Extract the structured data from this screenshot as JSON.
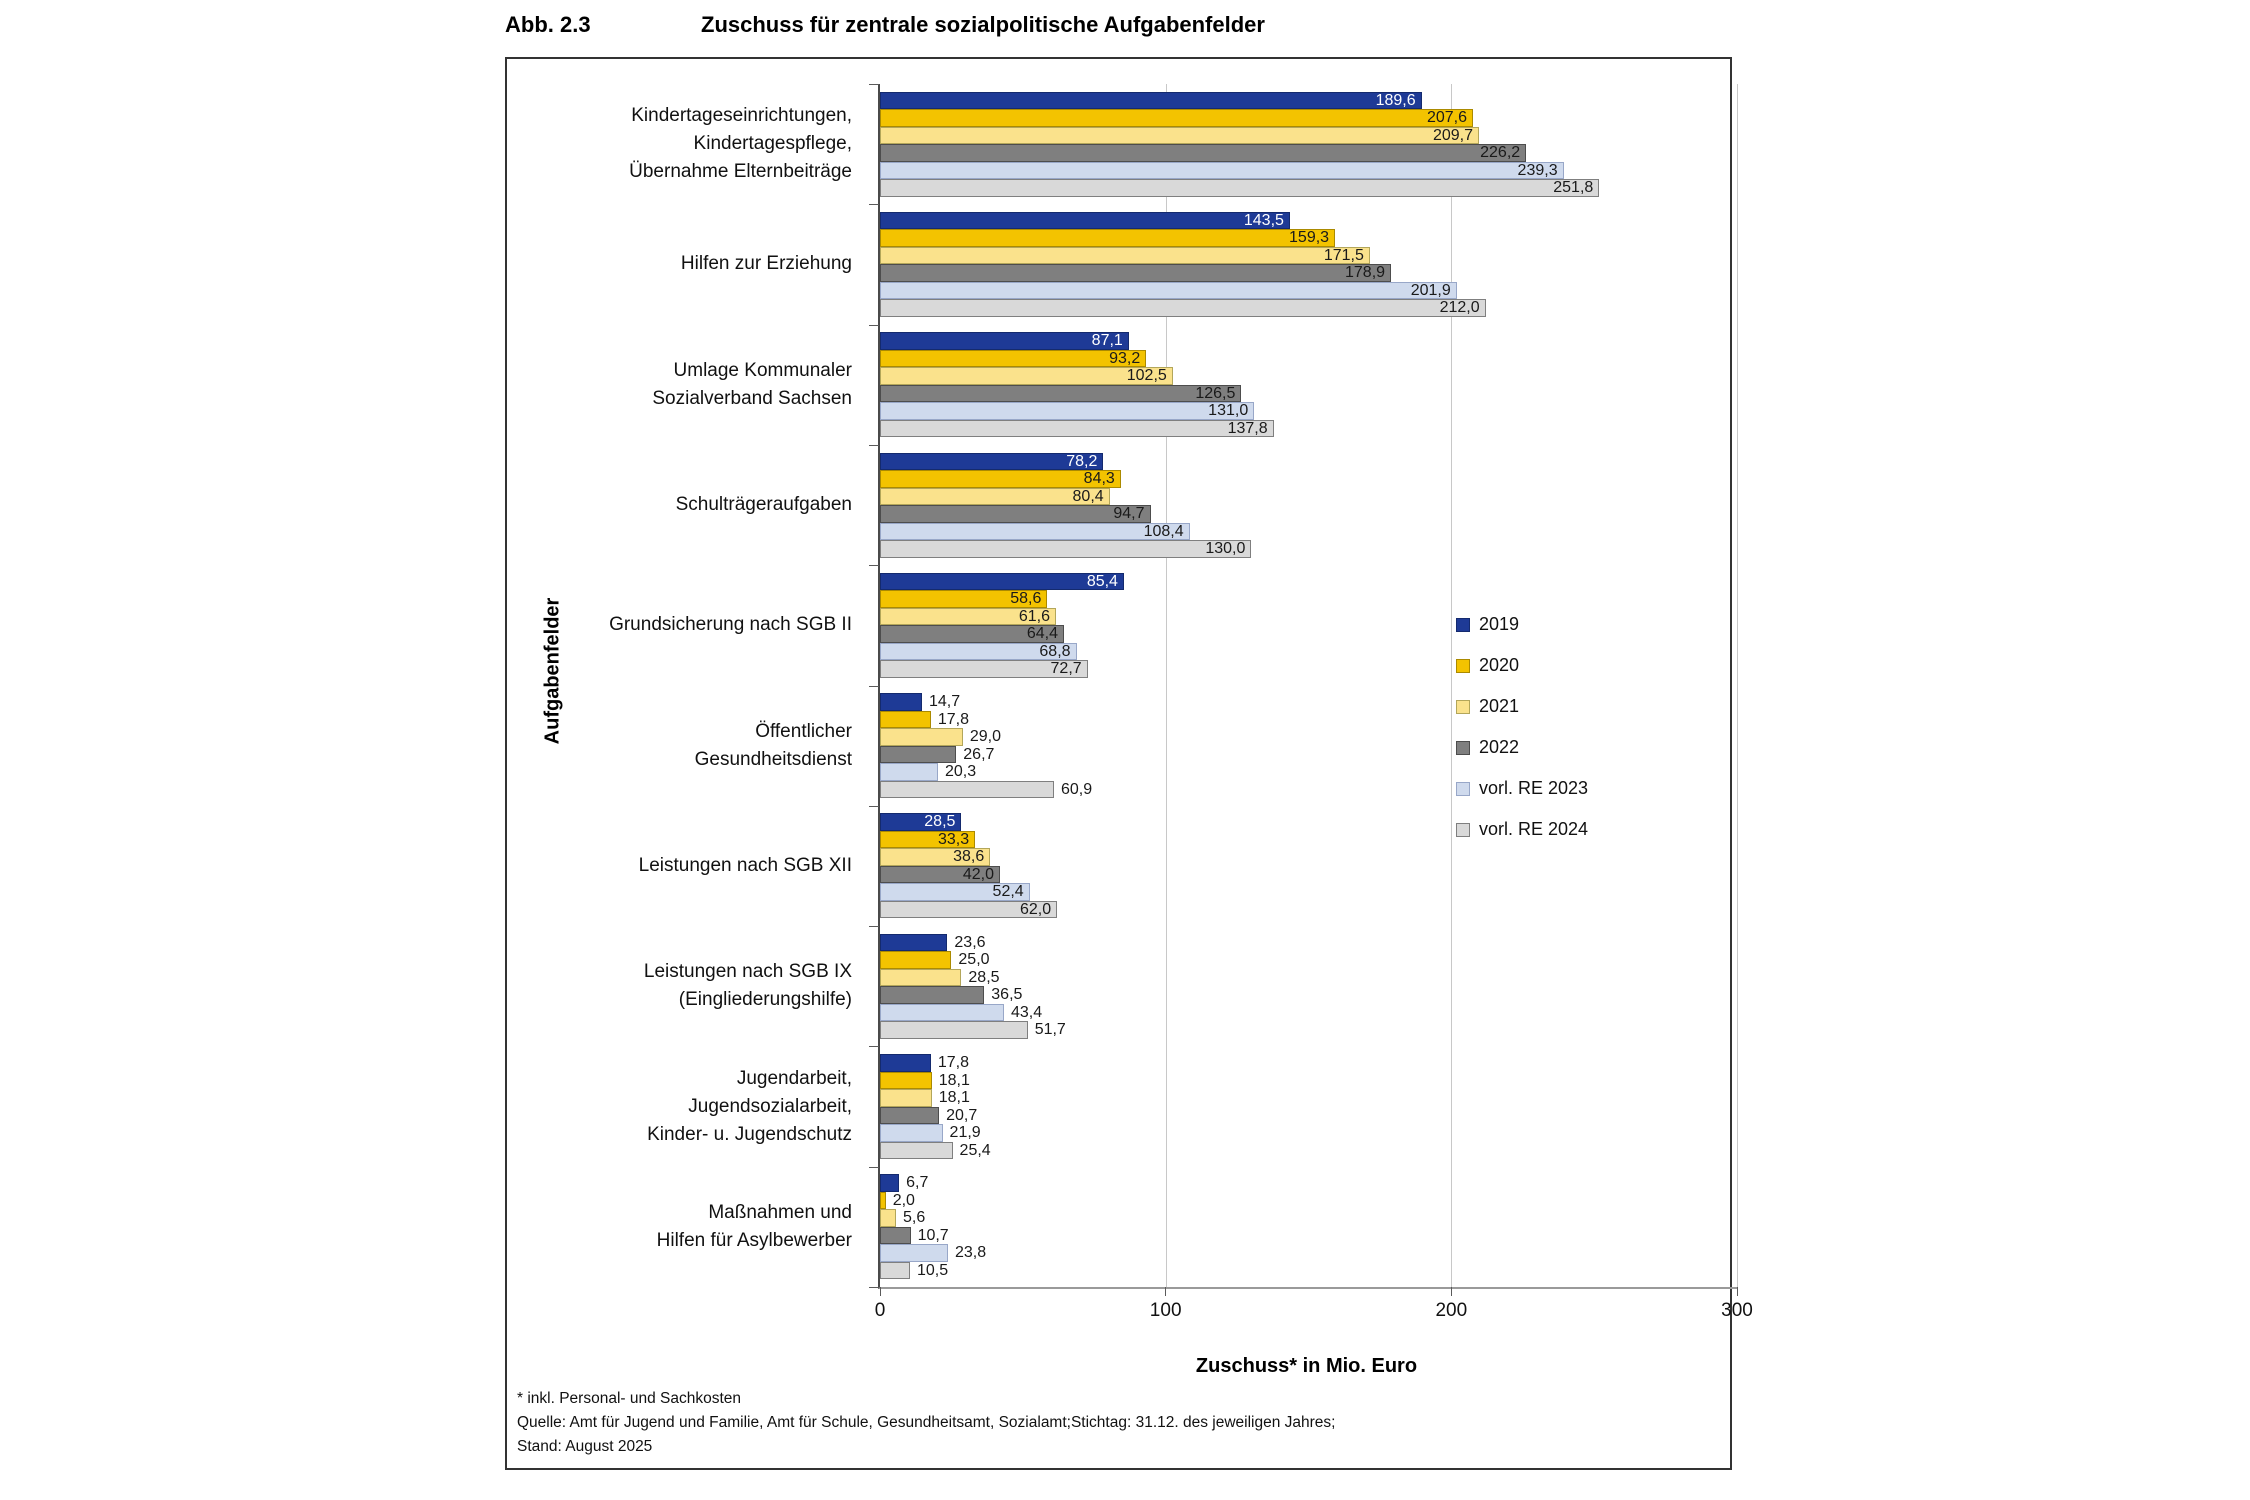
{
  "figure": {
    "label": "Abb. 2.3",
    "title": "Zuschuss für zentrale sozialpolitische Aufgabenfelder"
  },
  "chart_data": {
    "type": "bar",
    "orientation": "horizontal",
    "title": "Zuschuss für zentrale sozialpolitische Aufgabenfelder",
    "xlabel": "Zuschuss* in Mio. Euro",
    "ylabel": "Aufgabenfelder",
    "xlim": [
      0,
      300
    ],
    "xticks": [
      0,
      100,
      200,
      300
    ],
    "grid": "vertical gridlines at 100, 200, 300",
    "legend_position": "center-right",
    "decimal_format": "comma",
    "categories": [
      [
        "Kindertageseinrichtungen,",
        "Kindertagespflege,",
        "Übernahme Elternbeiträge"
      ],
      [
        "Hilfen zur Erziehung"
      ],
      [
        "Umlage Kommunaler",
        "Sozialverband Sachsen"
      ],
      [
        "Schulträgeraufgaben"
      ],
      [
        "Grundsicherung  nach SGB II"
      ],
      [
        "Öffentlicher",
        "Gesundheitsdienst"
      ],
      [
        "Leistungen nach SGB XII"
      ],
      [
        "Leistungen nach SGB IX",
        "(Eingliederungshilfe)"
      ],
      [
        "Jugendarbeit,",
        "Jugendsozialarbeit,",
        "Kinder- u. Jugendschutz"
      ],
      [
        "Maßnahmen und",
        "Hilfen für Asylbewerber"
      ]
    ],
    "series": [
      {
        "name": "2019",
        "color": "#1e3a96",
        "border": "#142a6e",
        "values": [
          189.6,
          143.5,
          87.1,
          78.2,
          85.4,
          14.7,
          28.5,
          23.6,
          17.8,
          6.7
        ]
      },
      {
        "name": "2020",
        "color": "#f3c300",
        "border": "#ab8a00",
        "values": [
          207.6,
          159.3,
          93.2,
          84.3,
          58.6,
          17.8,
          33.3,
          25.0,
          18.1,
          2.0
        ]
      },
      {
        "name": "2021",
        "color": "#fae28c",
        "border": "#b3a65a",
        "values": [
          209.7,
          171.5,
          102.5,
          80.4,
          61.6,
          29.0,
          38.6,
          28.5,
          18.1,
          5.6
        ]
      },
      {
        "name": "2022",
        "color": "#7f7f7f",
        "border": "#4d4d4d",
        "values": [
          226.2,
          178.9,
          126.5,
          94.7,
          64.4,
          26.7,
          42.0,
          36.5,
          20.7,
          10.7
        ]
      },
      {
        "name": "vorl. RE 2023",
        "color": "#cfdaed",
        "border": "#98a7c8",
        "values": [
          239.3,
          201.9,
          131.0,
          108.4,
          68.8,
          20.3,
          52.4,
          43.4,
          21.9,
          23.8
        ]
      },
      {
        "name": "vorl. RE 2024",
        "color": "#d9d9d9",
        "border": "#7f7f7f",
        "values": [
          251.8,
          212.0,
          137.8,
          130.0,
          72.7,
          60.9,
          62.0,
          51.7,
          25.4,
          10.5
        ]
      }
    ],
    "value_labels_outside_category_indexes": [
      5,
      7,
      8,
      9
    ],
    "colors": {
      "value_label": "#1a1a1a",
      "value_label_on_blue": "#ffffff",
      "gridline": "#c8c8c8",
      "axis": "#9a9a9a",
      "frame": "#333333"
    }
  },
  "footnotes": [
    "* inkl. Personal- und Sachkosten",
    "Quelle: Amt für Jugend und Familie, Amt für Schule, Gesundheitsamt, Sozialamt;Stichtag: 31.12. des jeweiligen Jahres;",
    "Stand: August 2025"
  ]
}
